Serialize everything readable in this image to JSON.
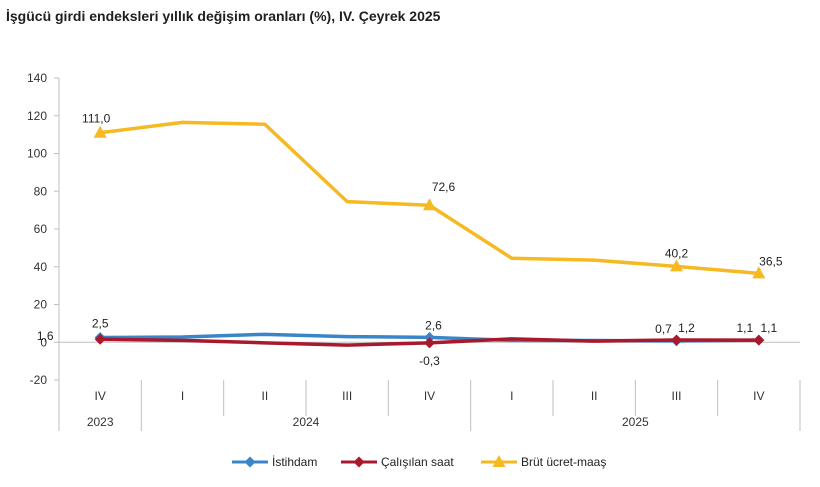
{
  "title": "İşgücü girdi endeksleri yıllık değişim oranları (%), IV. Çeyrek 2025",
  "chart_data": {
    "type": "line",
    "title": "İşgücü girdi endeksleri yıllık değişim oranları (%), IV. Çeyrek 2025",
    "x": [
      "IV",
      "I",
      "II",
      "III",
      "IV",
      "I",
      "II",
      "III",
      "IV"
    ],
    "year_groups": [
      {
        "label": "2023",
        "from": 0,
        "to": 0
      },
      {
        "label": "2024",
        "from": 1,
        "to": 4
      },
      {
        "label": "2025",
        "from": 5,
        "to": 8
      }
    ],
    "ylim": [
      -20,
      140
    ],
    "yticks": [
      -20,
      0,
      20,
      40,
      60,
      80,
      100,
      120,
      140
    ],
    "grid": false,
    "legend_position": "bottom",
    "series": [
      {
        "name": "İstihdam",
        "color": "#3a85c8",
        "marker": "diamond",
        "values": [
          2.5,
          2.8,
          4.2,
          3.0,
          2.6,
          1.0,
          0.9,
          0.7,
          1.1
        ],
        "labels": [
          {
            "index": 0,
            "text": "2,5"
          },
          {
            "index": 4,
            "text": "2,6"
          },
          {
            "index": 7,
            "text": "0,7"
          },
          {
            "index": 8,
            "text": "1,1"
          }
        ]
      },
      {
        "name": "Çalışılan saat",
        "color": "#a8192d",
        "marker": "diamond",
        "values": [
          1.6,
          1.0,
          -0.3,
          -1.5,
          -0.3,
          1.8,
          0.6,
          1.2,
          1.1
        ],
        "labels": [
          {
            "index": 0,
            "text": "1,6"
          },
          {
            "index": 4,
            "text": "-0,3"
          },
          {
            "index": 7,
            "text": "1,2"
          },
          {
            "index": 8,
            "text": "1,1"
          }
        ]
      },
      {
        "name": "Brüt ücret-maaş",
        "color": "#f5b921",
        "marker": "triangle",
        "values": [
          111.0,
          116.5,
          115.5,
          74.5,
          72.6,
          44.5,
          43.5,
          40.2,
          36.5
        ],
        "labels": [
          {
            "index": 0,
            "text": "111,0"
          },
          {
            "index": 4,
            "text": "72,6"
          },
          {
            "index": 7,
            "text": "40,2"
          },
          {
            "index": 8,
            "text": "36,5"
          }
        ]
      }
    ]
  }
}
